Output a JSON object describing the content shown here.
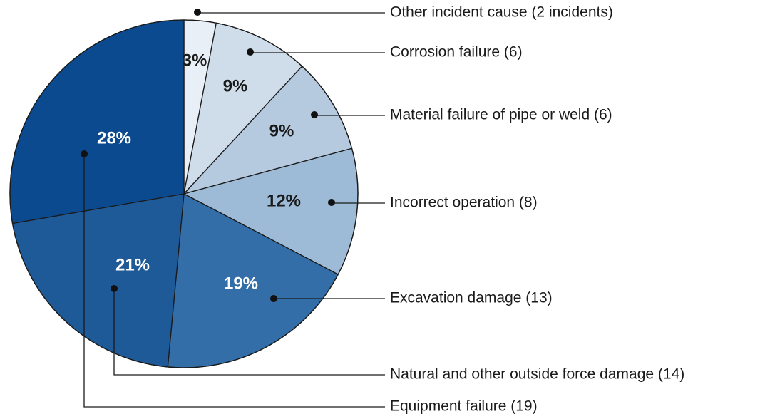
{
  "chart_data": {
    "type": "pie",
    "categories": [
      "Other incident cause (2 incidents)",
      "Corrosion failure (6)",
      "Material failure of pipe or weld (6)",
      "Incorrect operation (8)",
      "Excavation damage (13)",
      "Natural and other outside force damage (14)",
      "Equipment failure (19)"
    ],
    "values": [
      3,
      9,
      9,
      12,
      19,
      21,
      28
    ],
    "value_labels": [
      "3%",
      "9%",
      "9%",
      "12%",
      "19%",
      "21%",
      "28%"
    ],
    "colors": [
      "#e9eff7",
      "#cfdcea",
      "#b5c9df",
      "#9dbad6",
      "#336ea8",
      "#1f5a98",
      "#0b4a8e"
    ]
  }
}
